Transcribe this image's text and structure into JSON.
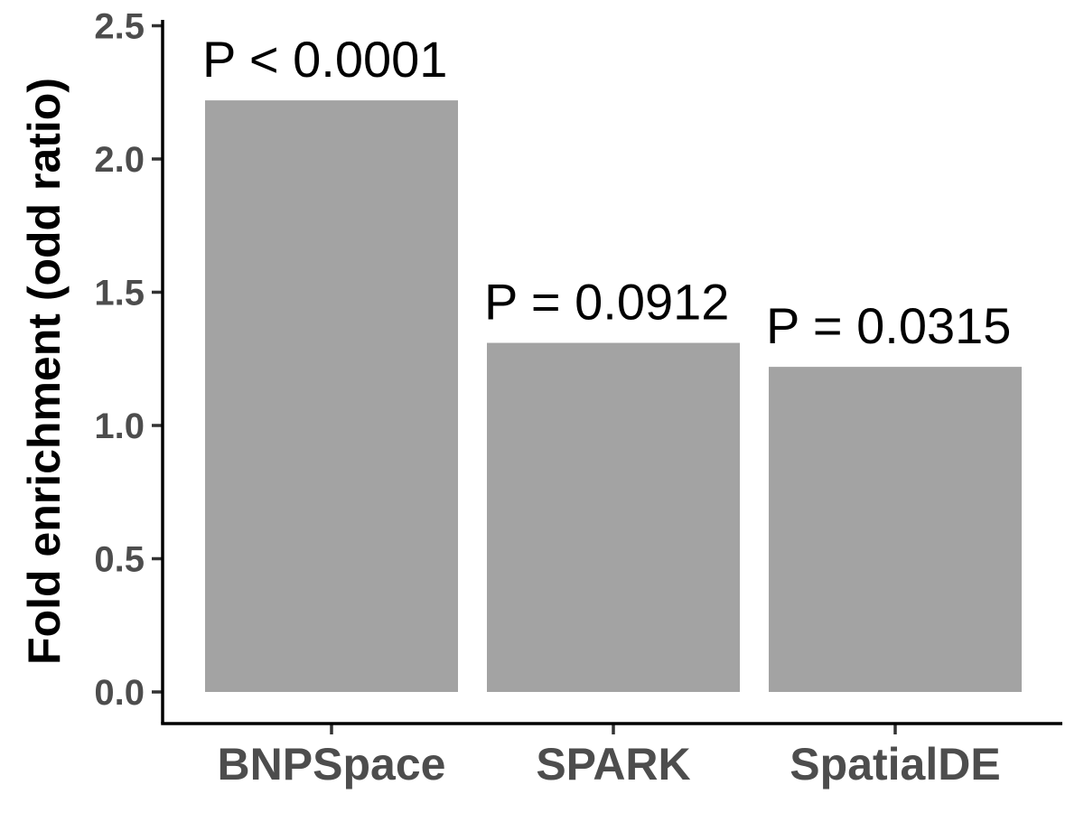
{
  "chart_data": {
    "type": "bar",
    "categories": [
      "BNPSpace",
      "SPARK",
      "SpatialDE"
    ],
    "values": [
      2.22,
      1.31,
      1.22
    ],
    "annotations": [
      "P < 0.0001",
      "P = 0.0912",
      "P = 0.0315"
    ],
    "ylabel": "Fold enrichment (odd ratio)",
    "xlabel": "",
    "ylim": [
      0,
      2.5
    ],
    "yticks": [
      "0.0",
      "0.5",
      "1.0",
      "1.5",
      "2.0",
      "2.5"
    ],
    "bar_color": "#a3a3a3",
    "grid": false,
    "legend": "none"
  }
}
